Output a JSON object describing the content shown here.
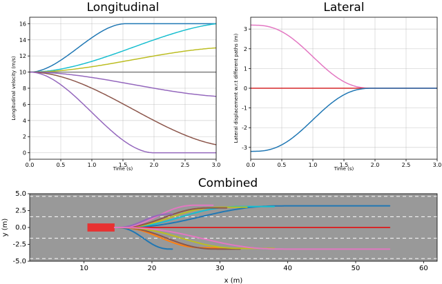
{
  "chart_data": [
    {
      "type": "line",
      "title": "Longitudinal",
      "xlabel": "Time (s)",
      "ylabel": "Longitudinal velocity (m/s)",
      "xlim": [
        0,
        3
      ],
      "ylim": [
        -0.8,
        16.8
      ],
      "xticks": [
        "0.0",
        "0.5",
        "1.0",
        "1.5",
        "2.0",
        "2.5",
        "3.0"
      ],
      "yticks": [
        "0",
        "2",
        "4",
        "6",
        "8",
        "10",
        "12",
        "14",
        "16"
      ],
      "grid": true,
      "series": [
        {
          "color": "#1f77b4",
          "curve": "cubic",
          "v_start": 10,
          "v_end": 16,
          "t_end": 1.55
        },
        {
          "color": "#17becf",
          "curve": "quad",
          "v_start": 10,
          "v_end": 16,
          "t_end": 3.0
        },
        {
          "color": "#bcbd22",
          "curve": "quad",
          "v_start": 10,
          "v_end": 13,
          "t_end": 3.0
        },
        {
          "color": "#7f7f7f",
          "curve": "flat",
          "v_start": 10,
          "v_end": 10,
          "t_end": 3.0
        },
        {
          "color": "#9467bd",
          "curve": "quad",
          "v_start": 10,
          "v_end": 7,
          "t_end": 3.0
        },
        {
          "color": "#8c564b",
          "curve": "quad",
          "v_start": 10,
          "v_end": 1,
          "t_end": 3.0
        },
        {
          "color": "#9467bd",
          "curve": "cubic",
          "v_start": 10,
          "v_end": 0,
          "t_end": 2.0
        }
      ]
    },
    {
      "type": "line",
      "title": "Lateral",
      "xlabel": "Time (s)",
      "ylabel": "Lateral displacement w.r.t different paths (m)",
      "xlim": [
        0,
        3
      ],
      "ylim": [
        -3.6,
        3.6
      ],
      "xticks": [
        "0.0",
        "0.5",
        "1.0",
        "1.5",
        "2.0",
        "2.5",
        "3.0"
      ],
      "yticks": [
        "-3",
        "-2",
        "-1",
        "0",
        "1",
        "2",
        "3"
      ],
      "grid": true,
      "series": [
        {
          "color": "#e377c2",
          "curve": "quintic",
          "d_start": 3.2,
          "d_end": 0,
          "t_end": 2.0
        },
        {
          "color": "#d62728",
          "curve": "flat",
          "d_start": 0,
          "d_end": 0,
          "t_end": 3.0
        },
        {
          "color": "#1f77b4",
          "curve": "quintic",
          "d_start": -3.2,
          "d_end": 0,
          "t_end": 2.0
        }
      ]
    },
    {
      "type": "line",
      "title": "Combined",
      "xlabel": "x (m)",
      "ylabel": "y (m)",
      "xlim": [
        2,
        62
      ],
      "ylim": [
        -5.0,
        5.0
      ],
      "xticks": [
        "10",
        "20",
        "30",
        "40",
        "50",
        "60"
      ],
      "yticks": [
        "-5.0",
        "-2.5",
        "0.0",
        "2.5",
        "5.0"
      ],
      "background": "#999999",
      "lane_markings_y": [
        4.6,
        1.6,
        -1.6,
        -4.6
      ],
      "vehicle": {
        "x": [
          10.5,
          14.5
        ],
        "y": [
          -0.6,
          0.6
        ],
        "color": "#e83131"
      },
      "x_start": 14.5,
      "paths": [
        {
          "color": "#1f77b4",
          "y_end": 3.2,
          "x_end": 55,
          "x_settle": 40
        },
        {
          "color": "#17becf",
          "y_end": 3.1,
          "x_end": 38,
          "x_settle": 34
        },
        {
          "color": "#bcbd22",
          "y_end": 3.0,
          "x_end": 34,
          "x_settle": 31
        },
        {
          "color": "#8c564b",
          "y_end": 2.9,
          "x_end": 31,
          "x_settle": 29
        },
        {
          "color": "#e377c2",
          "y_end": 3.3,
          "x_end": 29,
          "x_settle": 27
        },
        {
          "color": "#9467bd",
          "y_end": 2.0,
          "x_end": 23,
          "x_settle": 23
        },
        {
          "color": "#d62728",
          "y_end": 0,
          "x_end": 55,
          "x_settle": 55
        },
        {
          "color": "#1f77b4",
          "y_end": -3.2,
          "x_end": 23,
          "x_settle": 23
        },
        {
          "color": "#ff7f0e",
          "y_end": -3.0,
          "x_end": 31,
          "x_settle": 28
        },
        {
          "color": "#8c564b",
          "y_end": -3.2,
          "x_end": 33,
          "x_settle": 30
        },
        {
          "color": "#bcbd22",
          "y_end": -3.1,
          "x_end": 38,
          "x_settle": 34
        },
        {
          "color": "#e377c2",
          "y_end": -3.2,
          "x_end": 55,
          "x_settle": 40
        }
      ]
    }
  ]
}
